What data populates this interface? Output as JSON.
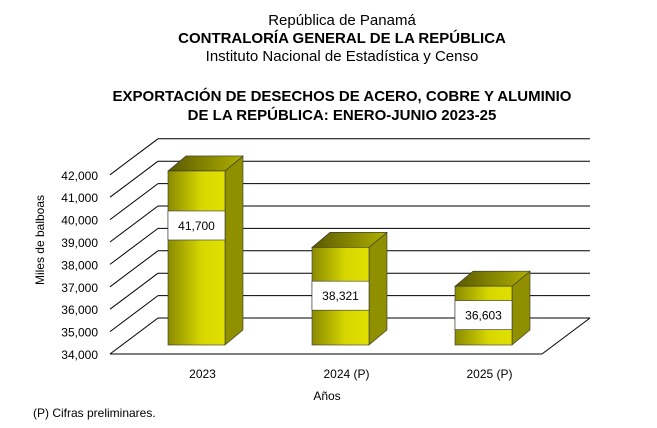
{
  "header": {
    "line1": "República de Panamá",
    "line2": "CONTRALORÍA GENERAL DE LA REPÚBLICA",
    "line3": "Instituto  Nacional de Estadística  y  Censo"
  },
  "chart_data": {
    "type": "bar",
    "title": [
      "EXPORTACIÓN DE DESECHOS DE ACERO, COBRE Y ALUMINIO",
      "DE LA REPÚBLICA: ENERO-JUNIO 2023-25"
    ],
    "categories": [
      "2023",
      "2024 (P)",
      "2025 (P)"
    ],
    "values": [
      41700,
      38321,
      36603
    ],
    "data_labels": [
      "41,700",
      "38,321",
      "36,603"
    ],
    "xlabel": "Años",
    "ylabel": "Miles de balboas",
    "ylim": [
      34000,
      42000
    ],
    "yticks": [
      "34,000",
      "35,000",
      "36,000",
      "37,000",
      "38,000",
      "39,000",
      "40,000",
      "41,000",
      "42,000"
    ],
    "grid": true,
    "bar_color": "#c8c800"
  },
  "footnote": "(P) Cifras  preliminares."
}
